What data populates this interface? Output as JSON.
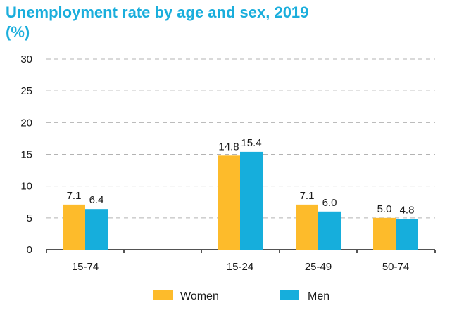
{
  "title": "Unemployment rate by age and sex, 2019",
  "unit": "(%)",
  "colors": {
    "women": "#fdbb2b",
    "men": "#16aedc",
    "title": "#1aaedc"
  },
  "chart_data": {
    "type": "bar",
    "title": "Unemployment rate by age and sex, 2019",
    "ylabel": "(%)",
    "xlabel": "",
    "ylim": [
      0,
      30
    ],
    "yticks": [
      0,
      5,
      10,
      15,
      20,
      25,
      30
    ],
    "grid": true,
    "legend": "bottom",
    "categories": [
      "15-74",
      "",
      "15-24",
      "25-49",
      "50-74"
    ],
    "series": [
      {
        "name": "Women",
        "values": [
          7.1,
          null,
          14.8,
          7.1,
          5.0
        ],
        "labels": [
          "7.1",
          "",
          "14.8",
          "7.1",
          "5.0"
        ]
      },
      {
        "name": "Men",
        "values": [
          6.4,
          null,
          15.4,
          6.0,
          4.8
        ],
        "labels": [
          "6.4",
          "",
          "15.4",
          "6.0",
          "4.8"
        ]
      }
    ]
  }
}
